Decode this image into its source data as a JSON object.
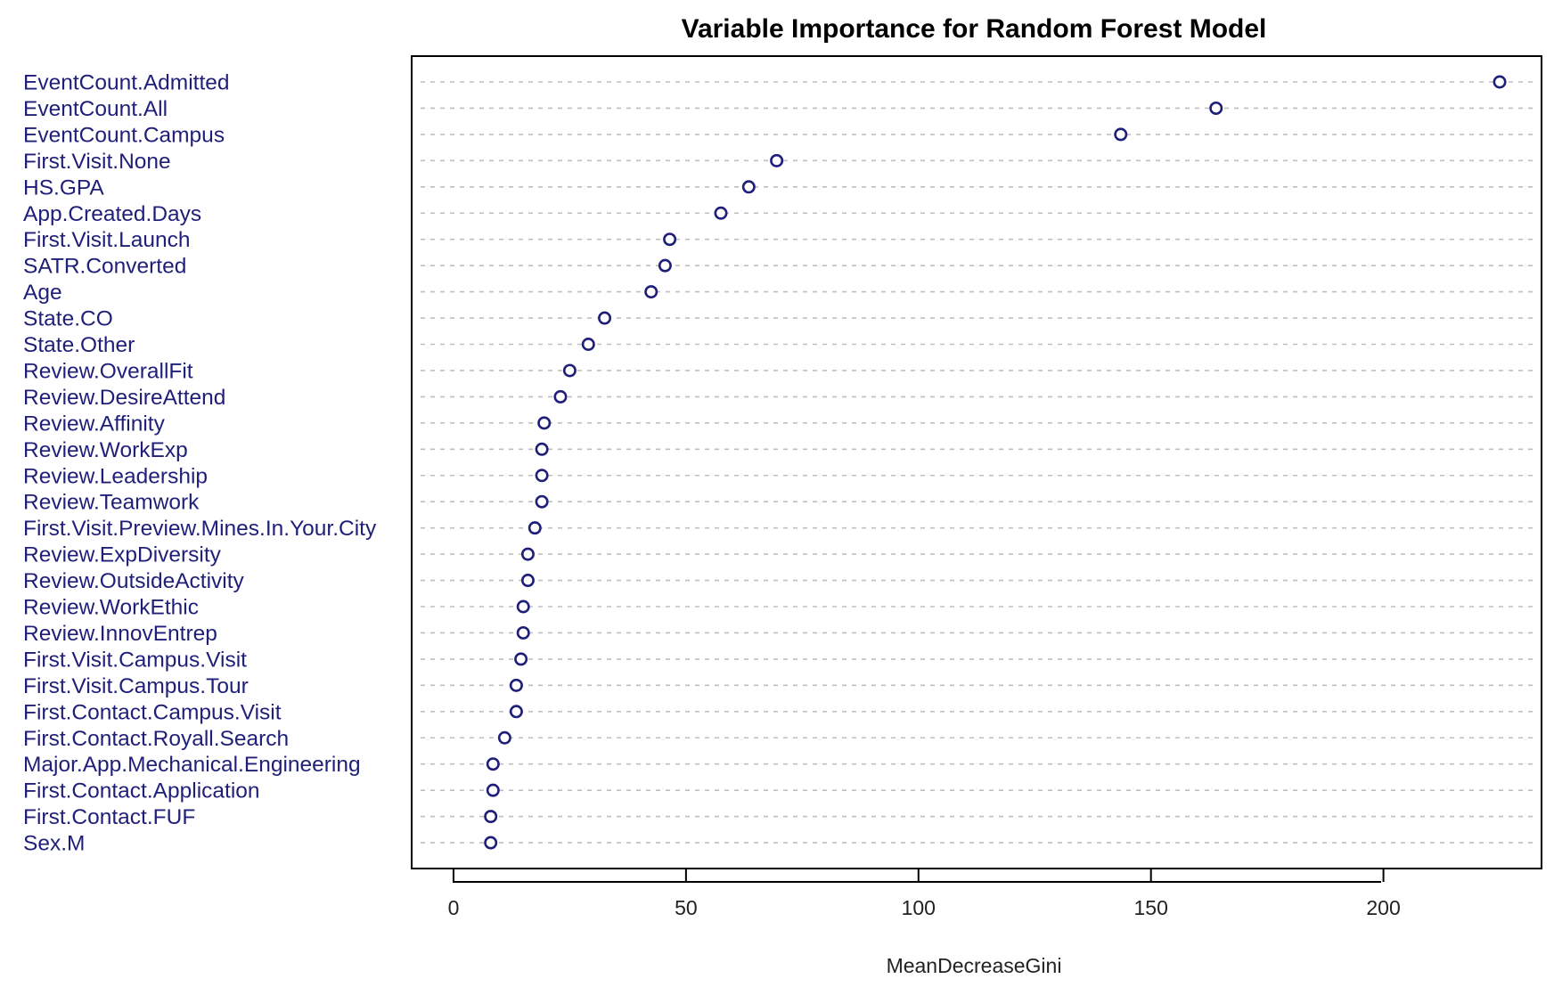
{
  "chart_data": {
    "type": "scatter",
    "title": "Variable Importance for Random Forest Model",
    "xlabel": "MeanDecreaseGini",
    "ylabel": "",
    "xlim": [
      -9,
      234
    ],
    "x_ticks": [
      0,
      50,
      100,
      150,
      200
    ],
    "grid": "horizontal dashed",
    "legend": "none",
    "colors": {
      "point": "#1f1f7a",
      "label": "#1f1f7a",
      "grid": "#bfbfbf",
      "axis": "#000000"
    },
    "categories": [
      "EventCount.Admitted",
      "EventCount.All",
      "EventCount.Campus",
      "First.Visit.None",
      "HS.GPA",
      "App.Created.Days",
      "First.Visit.Launch",
      "SATR.Converted",
      "Age",
      "State.CO",
      "State.Other",
      "Review.OverallFit",
      "Review.DesireAttend",
      "Review.Affinity",
      "Review.WorkExp",
      "Review.Leadership",
      "Review.Teamwork",
      "First.Visit.Preview.Mines.In.Your.City",
      "Review.ExpDiversity",
      "Review.OutsideActivity",
      "Review.WorkEthic",
      "Review.InnovEntrep",
      "First.Visit.Campus.Visit",
      "First.Visit.Campus.Tour",
      "First.Contact.Campus.Visit",
      "First.Contact.Royall.Search",
      "Major.App.Mechanical.Engineering",
      "First.Contact.Application",
      "First.Contact.FUF",
      "Sex.M"
    ],
    "values": [
      225,
      164,
      143.5,
      69.5,
      63.5,
      57.5,
      46.5,
      45.5,
      42.5,
      32.5,
      29,
      25,
      23,
      19.5,
      19,
      19,
      19,
      17.5,
      16,
      16,
      15,
      15,
      14.5,
      13.5,
      13.5,
      11,
      8.5,
      8.5,
      8,
      8
    ]
  }
}
